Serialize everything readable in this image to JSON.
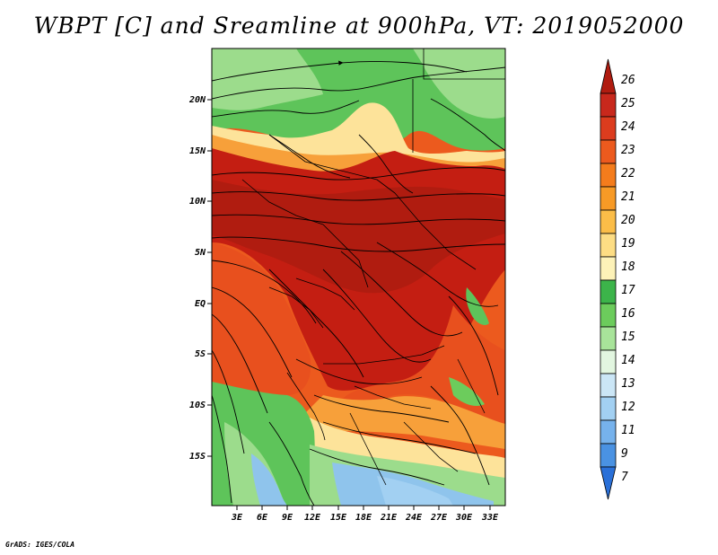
{
  "title": "WBPT [C] and Sreamline at 900hPa, VT: 2019052000",
  "credit": "GrADS: IGES/COLA",
  "map": {
    "lat_labels": [
      "20N",
      "15N",
      "10N",
      "5N",
      "EQ",
      "5S",
      "10S",
      "15S"
    ],
    "lon_labels": [
      "3E",
      "6E",
      "9E",
      "12E",
      "15E",
      "18E",
      "21E",
      "24E",
      "27E",
      "30E",
      "33E"
    ]
  },
  "colorbar": {
    "labels": [
      "26",
      "25",
      "24",
      "23",
      "22",
      "21",
      "20",
      "19",
      "18",
      "17",
      "16",
      "15",
      "14",
      "13",
      "12",
      "11",
      "9",
      "7"
    ],
    "colors": [
      "#b01c10",
      "#c8281c",
      "#dc3c1e",
      "#ec5a1e",
      "#f47c1c",
      "#f79a26",
      "#fbbd48",
      "#fddd84",
      "#fdf2b8",
      "#3cb44a",
      "#6ccc5c",
      "#a8e49a",
      "#e2f6e0",
      "#cbe6f6",
      "#a2d0f2",
      "#76b2ec",
      "#4a92e2",
      "#2a70d8"
    ]
  },
  "legend_colors": {
    "hot": "#c41e12",
    "warm": "#e8501e",
    "mild": "#f7a03a",
    "cool": "#fde39a",
    "green": "#5ec45a",
    "lightgreen": "#9cdc8c",
    "blue": "#8fc4ec"
  }
}
